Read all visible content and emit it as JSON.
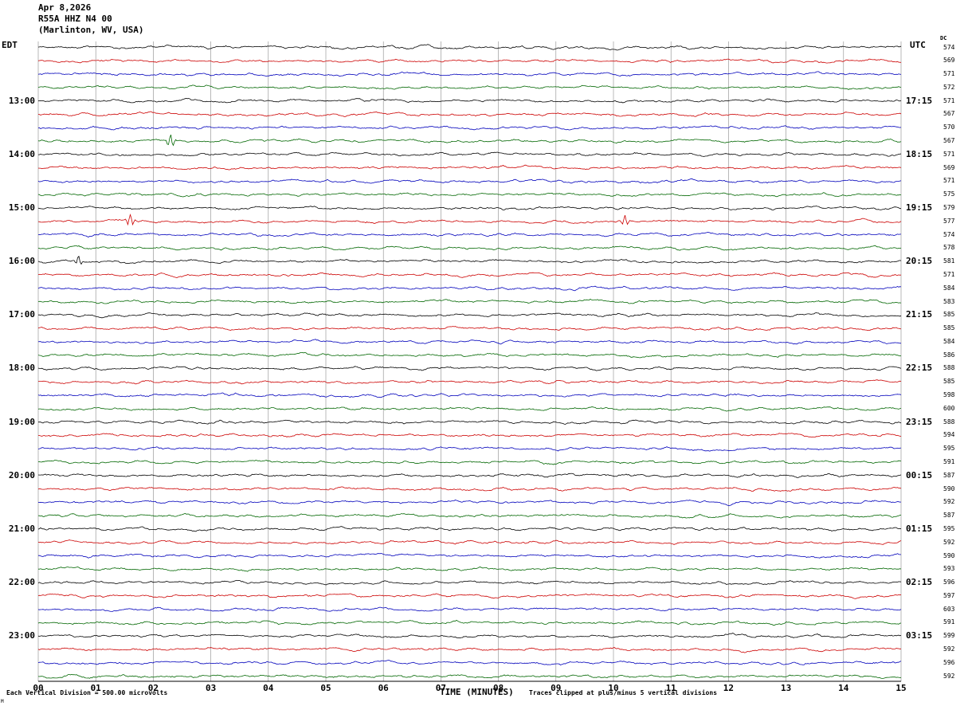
{
  "header": {
    "date": "Apr 8,2026",
    "station": "R55A HHZ N4 00",
    "location": "(Marlinton, WV, USA)",
    "left_tz": "EDT",
    "right_tz": "UTC",
    "dc_label": "DC"
  },
  "footer": {
    "scale": "Each Vertical Division =   500.00 microvolts",
    "xlabel": "TIME (MINUTES)",
    "clip_note": "Traces clipped at plus/minus 5 vertical divisions",
    "corner_mark": "M"
  },
  "chart_data": {
    "type": "line",
    "title": "R55A HHZ N4 00 helicorder seismogram",
    "xlabel": "TIME (MINUTES)",
    "x_range_minutes": [
      0,
      15
    ],
    "x_ticks": [
      "00",
      "01",
      "02",
      "03",
      "04",
      "05",
      "06",
      "07",
      "08",
      "09",
      "10",
      "11",
      "12",
      "13",
      "14",
      "15"
    ],
    "minutes_per_row": 15,
    "grid": true,
    "trace_colors": [
      "#000000",
      "#cc0000",
      "#0000bb",
      "#006600"
    ],
    "rows": [
      {
        "edt": "",
        "utc": "",
        "dc": 574
      },
      {
        "edt": "",
        "utc": "",
        "dc": 569
      },
      {
        "edt": "",
        "utc": "",
        "dc": 571
      },
      {
        "edt": "",
        "utc": "",
        "dc": 572
      },
      {
        "edt": "13:00",
        "utc": "17:15",
        "dc": 571
      },
      {
        "edt": "",
        "utc": "",
        "dc": 567
      },
      {
        "edt": "",
        "utc": "",
        "dc": 570
      },
      {
        "edt": "",
        "utc": "",
        "dc": 567
      },
      {
        "edt": "14:00",
        "utc": "18:15",
        "dc": 571
      },
      {
        "edt": "",
        "utc": "",
        "dc": 569
      },
      {
        "edt": "",
        "utc": "",
        "dc": 571
      },
      {
        "edt": "",
        "utc": "",
        "dc": 575
      },
      {
        "edt": "15:00",
        "utc": "19:15",
        "dc": 579
      },
      {
        "edt": "",
        "utc": "",
        "dc": 577
      },
      {
        "edt": "",
        "utc": "",
        "dc": 574
      },
      {
        "edt": "",
        "utc": "",
        "dc": 578
      },
      {
        "edt": "16:00",
        "utc": "20:15",
        "dc": 581
      },
      {
        "edt": "",
        "utc": "",
        "dc": 571
      },
      {
        "edt": "",
        "utc": "",
        "dc": 584
      },
      {
        "edt": "",
        "utc": "",
        "dc": 583
      },
      {
        "edt": "17:00",
        "utc": "21:15",
        "dc": 585
      },
      {
        "edt": "",
        "utc": "",
        "dc": 585
      },
      {
        "edt": "",
        "utc": "",
        "dc": 584
      },
      {
        "edt": "",
        "utc": "",
        "dc": 586
      },
      {
        "edt": "18:00",
        "utc": "22:15",
        "dc": 588
      },
      {
        "edt": "",
        "utc": "",
        "dc": 585
      },
      {
        "edt": "",
        "utc": "",
        "dc": 598
      },
      {
        "edt": "",
        "utc": "",
        "dc": 600
      },
      {
        "edt": "19:00",
        "utc": "23:15",
        "dc": 588
      },
      {
        "edt": "",
        "utc": "",
        "dc": 594
      },
      {
        "edt": "",
        "utc": "",
        "dc": 595
      },
      {
        "edt": "",
        "utc": "",
        "dc": 591
      },
      {
        "edt": "20:00",
        "utc": "00:15",
        "dc": 587
      },
      {
        "edt": "",
        "utc": "",
        "dc": 590
      },
      {
        "edt": "",
        "utc": "",
        "dc": 592
      },
      {
        "edt": "",
        "utc": "",
        "dc": 587
      },
      {
        "edt": "21:00",
        "utc": "01:15",
        "dc": 595
      },
      {
        "edt": "",
        "utc": "",
        "dc": 592
      },
      {
        "edt": "",
        "utc": "",
        "dc": 590
      },
      {
        "edt": "",
        "utc": "",
        "dc": 593
      },
      {
        "edt": "22:00",
        "utc": "02:15",
        "dc": 596
      },
      {
        "edt": "",
        "utc": "",
        "dc": 597
      },
      {
        "edt": "",
        "utc": "",
        "dc": 603
      },
      {
        "edt": "",
        "utc": "",
        "dc": 591
      },
      {
        "edt": "23:00",
        "utc": "03:15",
        "dc": 599
      },
      {
        "edt": "",
        "utc": "",
        "dc": 592
      },
      {
        "edt": "",
        "utc": "",
        "dc": 596
      },
      {
        "edt": "",
        "utc": "",
        "dc": 592
      }
    ],
    "spikes": [
      {
        "row": 7,
        "minute": 2.3,
        "amp": 9
      },
      {
        "row": 13,
        "minute": 1.6,
        "amp": 10
      },
      {
        "row": 13,
        "minute": 10.2,
        "amp": 7
      },
      {
        "row": 16,
        "minute": 0.7,
        "amp": 6
      }
    ],
    "waveform_note": "Background seismic noise traces; each row = 15 minutes, 4 rows per hour, colors cycle black/red/blue/green, clipped at plus/minus 5 vertical divisions (500 microvolts each)."
  }
}
